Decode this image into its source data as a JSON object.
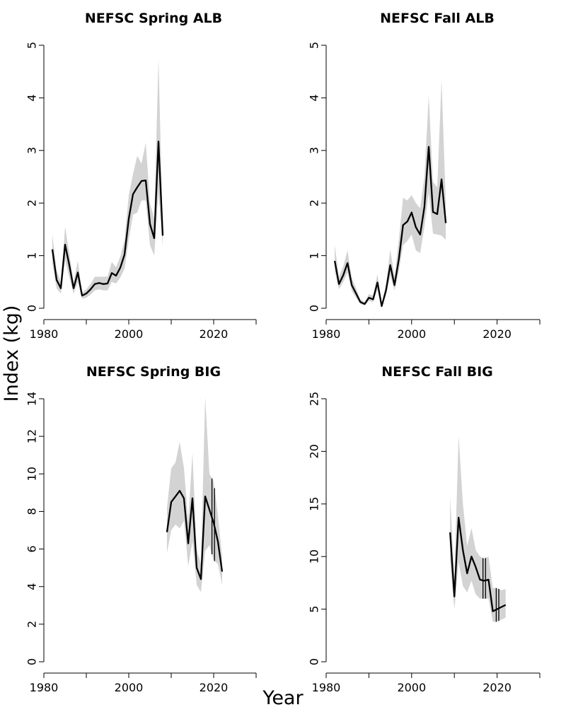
{
  "ylabel": "Index  (kg)",
  "xlabel": "Year",
  "chart_data": [
    {
      "type": "line",
      "title": "NEFSC Spring ALB",
      "xlim": [
        1980,
        2030
      ],
      "ylim": [
        0,
        5
      ],
      "xticks": [
        1980,
        1990,
        2000,
        2010,
        2020,
        2030
      ],
      "xtick_labels": [
        "1980",
        "",
        "2000",
        "",
        "2020",
        ""
      ],
      "yticks": [
        0,
        1,
        2,
        3,
        4,
        5
      ],
      "grid": false,
      "x": [
        1982,
        1983,
        1984,
        1985,
        1986,
        1987,
        1988,
        1989,
        1990,
        1991,
        1992,
        1993,
        1994,
        1995,
        1996,
        1997,
        1998,
        1999,
        2000,
        2001,
        2002,
        2003,
        2004,
        2005,
        2006,
        2007,
        2008
      ],
      "values": [
        1.12,
        0.54,
        0.38,
        1.21,
        0.82,
        0.38,
        0.68,
        0.24,
        0.28,
        0.36,
        0.46,
        0.48,
        0.46,
        0.47,
        0.67,
        0.62,
        0.77,
        1.02,
        1.7,
        2.17,
        2.3,
        2.42,
        2.43,
        1.6,
        1.33,
        3.17,
        1.38
      ],
      "lower": [
        0.85,
        0.38,
        0.28,
        0.92,
        0.58,
        0.28,
        0.5,
        0.18,
        0.2,
        0.26,
        0.34,
        0.36,
        0.34,
        0.34,
        0.5,
        0.47,
        0.58,
        0.75,
        1.3,
        1.78,
        1.82,
        2.05,
        2.05,
        1.2,
        1.0,
        2.2,
        1.18
      ],
      "upper": [
        1.4,
        0.72,
        0.5,
        1.55,
        1.05,
        0.5,
        0.9,
        0.3,
        0.36,
        0.46,
        0.6,
        0.6,
        0.6,
        0.6,
        0.88,
        0.78,
        0.98,
        1.3,
        2.15,
        2.55,
        2.9,
        2.75,
        3.15,
        2.0,
        1.7,
        4.75,
        1.55
      ]
    },
    {
      "type": "line",
      "title": "NEFSC Fall ALB",
      "xlim": [
        1980,
        2030
      ],
      "ylim": [
        0,
        5
      ],
      "xticks": [
        1980,
        1990,
        2000,
        2010,
        2020,
        2030
      ],
      "xtick_labels": [
        "1980",
        "",
        "2000",
        "",
        "2020",
        ""
      ],
      "yticks": [
        0,
        1,
        2,
        3,
        4,
        5
      ],
      "grid": false,
      "x": [
        1982,
        1983,
        1984,
        1985,
        1986,
        1987,
        1988,
        1989,
        1990,
        1991,
        1992,
        1993,
        1994,
        1995,
        1996,
        1997,
        1998,
        1999,
        2000,
        2001,
        2002,
        2003,
        2004,
        2005,
        2006,
        2007,
        2008
      ],
      "values": [
        0.9,
        0.46,
        0.63,
        0.86,
        0.44,
        0.28,
        0.12,
        0.08,
        0.2,
        0.17,
        0.49,
        0.04,
        0.34,
        0.82,
        0.44,
        0.93,
        1.58,
        1.65,
        1.82,
        1.54,
        1.4,
        1.93,
        3.07,
        1.83,
        1.79,
        2.45,
        1.62
      ],
      "lower": [
        0.7,
        0.36,
        0.5,
        0.68,
        0.33,
        0.2,
        0.08,
        0.05,
        0.14,
        0.12,
        0.36,
        0.02,
        0.25,
        0.62,
        0.34,
        0.7,
        1.2,
        1.28,
        1.4,
        1.1,
        1.05,
        1.55,
        2.2,
        1.42,
        1.4,
        1.38,
        1.3
      ],
      "upper": [
        1.2,
        0.6,
        0.8,
        1.1,
        0.58,
        0.38,
        0.17,
        0.12,
        0.27,
        0.24,
        0.65,
        0.07,
        0.46,
        1.12,
        0.6,
        1.3,
        2.1,
        2.05,
        2.15,
        2.0,
        1.9,
        2.5,
        4.05,
        2.4,
        2.3,
        4.35,
        2.0
      ]
    },
    {
      "type": "line",
      "title": "NEFSC Spring BIG",
      "xlim": [
        1980,
        2030
      ],
      "ylim": [
        0,
        14
      ],
      "xticks": [
        1980,
        1990,
        2000,
        2010,
        2020,
        2030
      ],
      "xtick_labels": [
        "1980",
        "",
        "2000",
        "",
        "2020",
        ""
      ],
      "yticks": [
        0,
        2,
        4,
        6,
        8,
        10,
        12,
        14
      ],
      "grid": false,
      "x": [
        2009,
        2010,
        2011,
        2012,
        2013,
        2014,
        2015,
        2016,
        2017,
        2018,
        2019,
        2020,
        2021,
        2022
      ],
      "values": [
        6.9,
        8.5,
        8.8,
        9.1,
        8.7,
        6.3,
        8.7,
        5.0,
        4.4,
        8.8,
        8.1,
        7.4,
        6.4,
        4.8
      ],
      "lower": [
        5.8,
        7.0,
        7.3,
        7.1,
        7.5,
        5.1,
        6.4,
        4.1,
        3.7,
        5.9,
        6.2,
        5.4,
        5.2,
        4.1
      ],
      "upper": [
        8.2,
        10.3,
        10.6,
        11.7,
        10.3,
        7.5,
        11.1,
        6.0,
        5.2,
        14.1,
        10.0,
        9.6,
        7.8,
        5.6
      ],
      "error_bar_years": [
        2019.6,
        2020.2
      ]
    },
    {
      "type": "line",
      "title": "NEFSC Fall BIG",
      "xlim": [
        1980,
        2030
      ],
      "ylim": [
        0,
        25
      ],
      "xticks": [
        1980,
        1990,
        2000,
        2010,
        2020,
        2030
      ],
      "xtick_labels": [
        "1980",
        "",
        "2000",
        "",
        "2020",
        ""
      ],
      "yticks": [
        0,
        5,
        10,
        15,
        20,
        25
      ],
      "grid": false,
      "x": [
        2009,
        2010,
        2011,
        2012,
        2013,
        2014,
        2015,
        2016,
        2017,
        2018,
        2019,
        2020,
        2021,
        2022
      ],
      "values": [
        12.3,
        6.2,
        13.7,
        10.6,
        8.4,
        10.0,
        9.0,
        7.8,
        7.7,
        7.8,
        4.8,
        5.0,
        5.2,
        5.4
      ],
      "lower": [
        9.5,
        5.0,
        9.5,
        7.2,
        6.6,
        7.7,
        6.4,
        6.0,
        6.0,
        6.0,
        3.8,
        3.8,
        4.0,
        4.2
      ],
      "upper": [
        15.8,
        7.9,
        21.5,
        15.0,
        11.0,
        12.7,
        10.6,
        10.0,
        9.8,
        10.0,
        7.0,
        7.0,
        6.8,
        6.9
      ],
      "error_bar_years": [
        2016.7,
        2017.3,
        2019.8,
        2020.4
      ]
    }
  ]
}
